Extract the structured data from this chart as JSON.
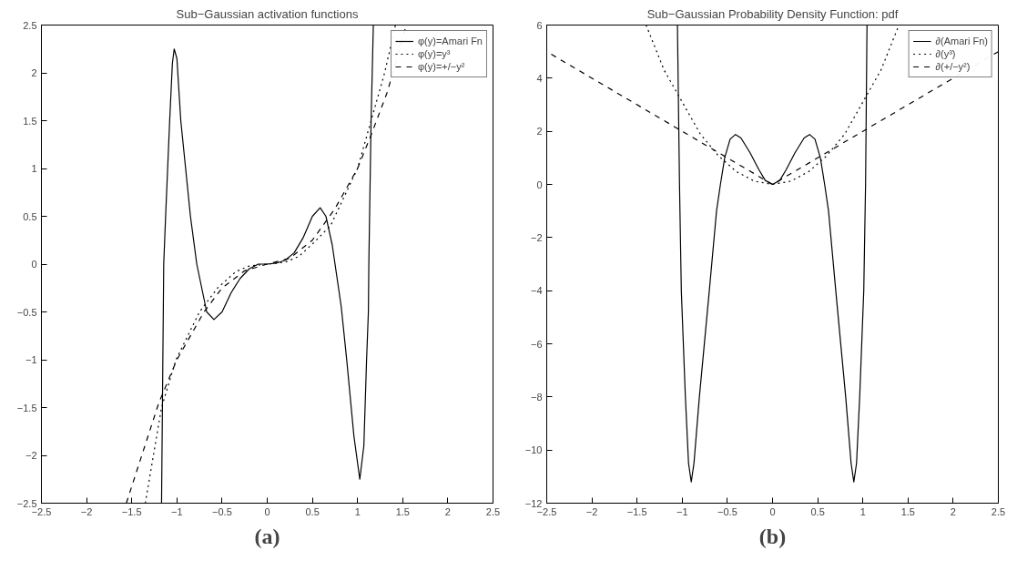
{
  "chart_data": [
    {
      "type": "line",
      "title": "Sub−Gaussian activation functions",
      "annotations": [
        "(a)"
      ],
      "xlim": [
        -2.5,
        2.5
      ],
      "ylim": [
        -2.5,
        2.5
      ],
      "xticks": [
        -2.5,
        -2,
        -1.5,
        -1,
        -0.5,
        0,
        0.5,
        1,
        1.5,
        2,
        2.5
      ],
      "yticks": [
        -2.5,
        -2,
        -1.5,
        -1,
        -0.5,
        0,
        0.5,
        1,
        1.5,
        2,
        2.5
      ],
      "grid": false,
      "legend": "top right",
      "marker": "none",
      "series": [
        {
          "name": "φ(y)=Amari Fn",
          "color": "#000000",
          "line_style": "solid",
          "x": [
            -1.17,
            -1.146,
            -1.125,
            -1.08,
            -1.05,
            -1.03,
            -1.0,
            -0.957,
            -0.85,
            -0.78,
            -0.67,
            -0.59,
            -0.5,
            -0.4,
            -0.3,
            -0.2,
            -0.1,
            0,
            0.1,
            0.2,
            0.3,
            0.4,
            0.5,
            0.586,
            0.65,
            0.72,
            0.82,
            0.88,
            0.96,
            1.025,
            1.07,
            1.1,
            1.12,
            1.125,
            1.15,
            1.175
          ],
          "values": [
            -2.5,
            0,
            0.5,
            1.5,
            2.1,
            2.25,
            2.15,
            1.5,
            0.5,
            0,
            -0.5,
            -0.58,
            -0.5,
            -0.3,
            -0.15,
            -0.05,
            0,
            0,
            0.01,
            0.04,
            0.12,
            0.28,
            0.5,
            0.59,
            0.5,
            0.2,
            -0.45,
            -1.0,
            -1.8,
            -2.25,
            -1.9,
            -1.0,
            -0.5,
            0,
            1.5,
            2.5
          ]
        },
        {
          "name": "φ(y)=y³",
          "color": "#000000",
          "line_style": "dotted",
          "x": [
            -1.35,
            -1.17,
            -1.01,
            -0.75,
            -0.55,
            -0.35,
            -0.2,
            0,
            0.2,
            0.35,
            0.5,
            0.7,
            1.0,
            1.15,
            1.3,
            1.42
          ],
          "values": [
            -2.5,
            -1.5,
            -1.0,
            -0.5,
            -0.25,
            -0.08,
            -0.02,
            0,
            0.02,
            0.08,
            0.21,
            0.4,
            1.0,
            1.5,
            2.0,
            2.5
          ]
        },
        {
          "name": "φ(y)=+/−y²",
          "color": "#000000",
          "line_style": "dashed",
          "x": [
            -1.56,
            -1.2,
            -1.0,
            -0.7,
            -0.5,
            -0.25,
            0,
            0.25,
            0.5,
            0.75,
            1.0,
            1.15,
            1.33,
            1.54
          ],
          "values": [
            -2.5,
            -1.45,
            -1.0,
            -0.5,
            -0.25,
            -0.07,
            0,
            0.06,
            0.25,
            0.58,
            1.0,
            1.35,
            1.8,
            2.5
          ]
        }
      ]
    },
    {
      "type": "line",
      "title": "Sub−Gaussian Probability Density Function: pdf",
      "annotations": [
        "(b)"
      ],
      "xlim": [
        -2.5,
        2.5
      ],
      "ylim": [
        -12,
        6
      ],
      "xticks": [
        -2.5,
        -2,
        -1.5,
        -1,
        -0.5,
        0,
        0.5,
        1,
        1.5,
        2,
        2.5
      ],
      "yticks": [
        -12,
        -10,
        -8,
        -6,
        -4,
        -2,
        0,
        2,
        4,
        6
      ],
      "grid": false,
      "legend": "top right",
      "marker": "none",
      "series": [
        {
          "name": "∂(Amari Fn)",
          "color": "#000000",
          "line_style": "solid",
          "x": [
            -1.053,
            -1.03,
            -1.01,
            -0.965,
            -0.93,
            -0.9,
            -0.87,
            -0.81,
            -0.7,
            -0.62,
            -0.577,
            -0.53,
            -0.47,
            -0.41,
            -0.35,
            -0.25,
            -0.15,
            -0.08,
            0,
            0.08,
            0.15,
            0.25,
            0.35,
            0.41,
            0.47,
            0.53,
            0.577,
            0.62,
            0.7,
            0.81,
            0.87,
            0.9,
            0.93,
            0.965,
            1.01,
            1.03,
            1.046
          ],
          "values": [
            6,
            0,
            -4,
            -8,
            -10.5,
            -11.2,
            -10.5,
            -8,
            -4,
            -1,
            0,
            1,
            1.7,
            1.88,
            1.75,
            1.2,
            0.55,
            0.15,
            0,
            0.15,
            0.55,
            1.2,
            1.75,
            1.88,
            1.7,
            1,
            0,
            -1,
            -4,
            -8,
            -10.5,
            -11.2,
            -10.5,
            -8,
            -4,
            0,
            6
          ]
        },
        {
          "name": "∂(y³)",
          "color": "#000000",
          "line_style": "dotted",
          "x": [
            -1.4,
            -1.2,
            -1.0,
            -0.8,
            -0.6,
            -0.4,
            -0.2,
            0,
            0.2,
            0.4,
            0.6,
            0.8,
            1.0,
            1.2,
            1.4
          ],
          "values": [
            6,
            4.3,
            3.1,
            1.9,
            1.08,
            0.48,
            0.12,
            0,
            0.12,
            0.48,
            1.08,
            1.9,
            3.1,
            4.3,
            6
          ]
        },
        {
          "name": "∂(+/−y²)",
          "color": "#000000",
          "line_style": "dashed",
          "x": [
            -2.45,
            -1.0,
            0,
            1.0,
            2.5
          ],
          "values": [
            4.9,
            2.0,
            0,
            2.0,
            5.0
          ]
        }
      ]
    }
  ]
}
